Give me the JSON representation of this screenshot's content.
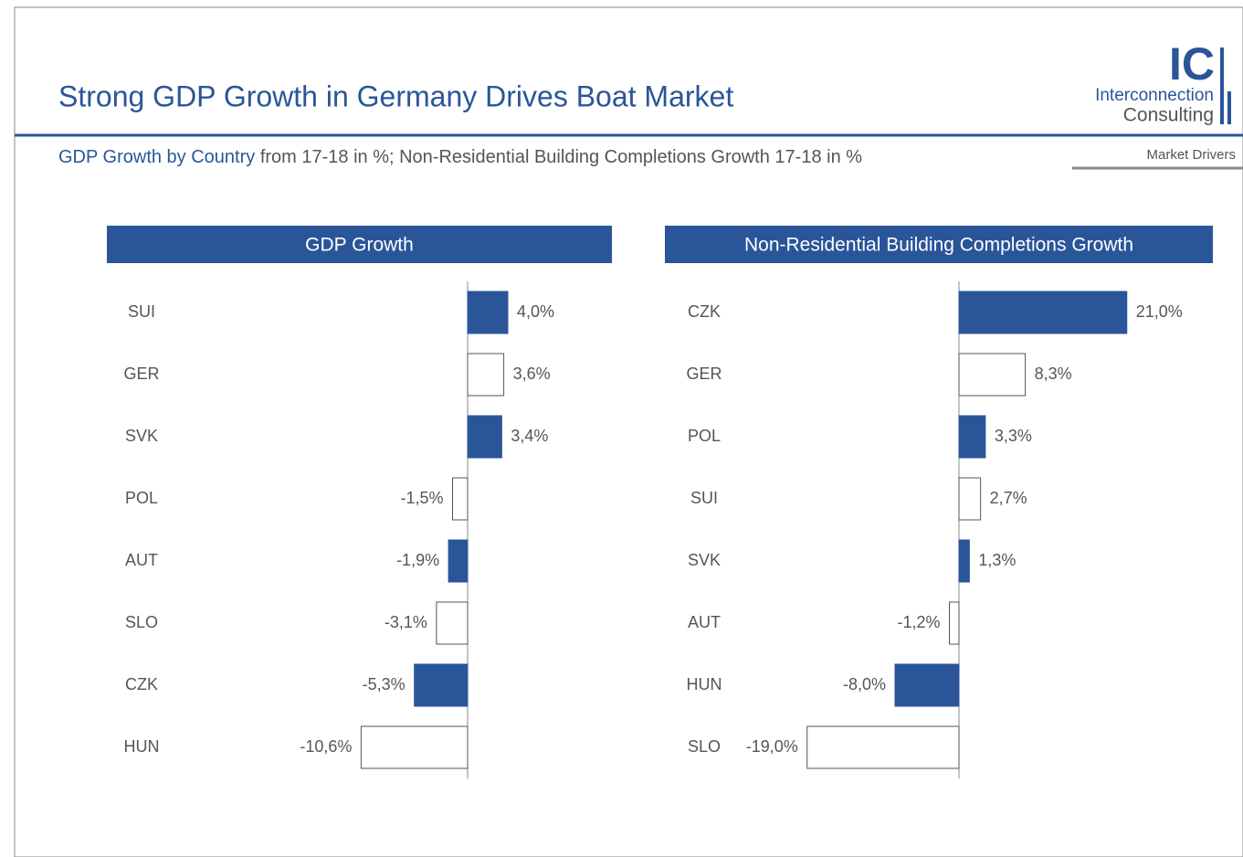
{
  "header": {
    "title": "Strong GDP Growth in Germany Drives Boat Market",
    "subtitle_lead": "GDP Growth by Country",
    "subtitle_rest": "from 17-18 in %; Non-Residential Building Completions Growth 17-18 in %",
    "logo_mark": "IC",
    "logo_line1": "Interconnection",
    "logo_line2": "Consulting",
    "section": "Market Drivers"
  },
  "chart_data": [
    {
      "type": "bar",
      "orientation": "horizontal",
      "title": "GDP Growth",
      "categories": [
        "SUI",
        "GER",
        "SVK",
        "POL",
        "AUT",
        "SLO",
        "CZK",
        "HUN"
      ],
      "values": [
        4.0,
        3.6,
        3.4,
        -1.5,
        -1.9,
        -3.1,
        -5.3,
        -10.6
      ],
      "value_labels": [
        "4,0%",
        "3,6%",
        "3,4%",
        "-1,5%",
        "-1,9%",
        "-3,1%",
        "-5,3%",
        "-10,6%"
      ],
      "colors": [
        "#2a5599",
        "#ffffff",
        "#2a5599",
        "#ffffff",
        "#2a5599",
        "#ffffff",
        "#2a5599",
        "#ffffff"
      ]
    },
    {
      "type": "bar",
      "orientation": "horizontal",
      "title": "Non-Residential Building Completions Growth",
      "categories": [
        "CZK",
        "GER",
        "POL",
        "SUI",
        "SVK",
        "AUT",
        "HUN",
        "SLO"
      ],
      "values": [
        21.0,
        8.3,
        3.3,
        2.7,
        1.3,
        -1.2,
        -8.0,
        -19.0
      ],
      "value_labels": [
        "21,0%",
        "8,3%",
        "3,3%",
        "2,7%",
        "1,3%",
        "-1,2%",
        "-8,0%",
        "-19,0%"
      ],
      "colors": [
        "#2a5599",
        "#ffffff",
        "#2a5599",
        "#ffffff",
        "#2a5599",
        "#ffffff",
        "#2a5599",
        "#ffffff"
      ]
    }
  ]
}
